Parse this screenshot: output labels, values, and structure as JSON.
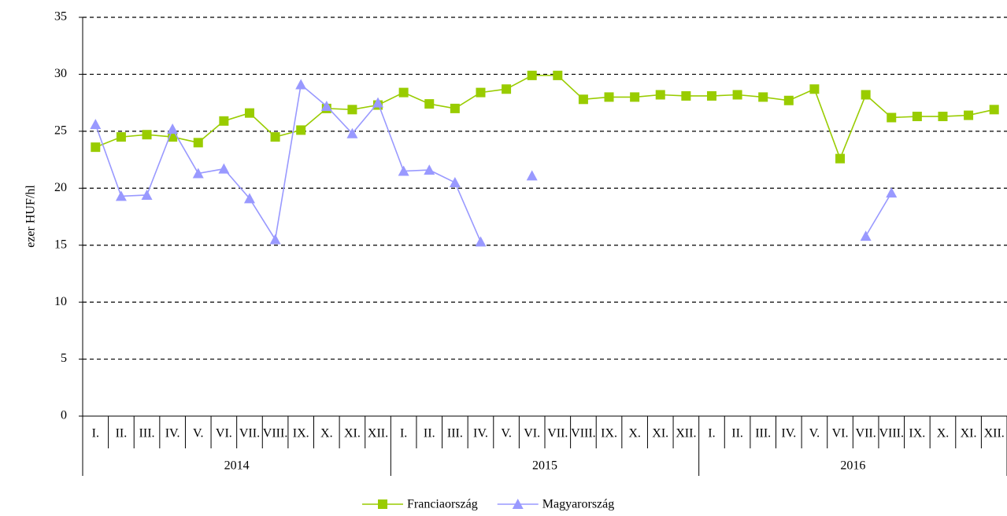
{
  "chart_data": {
    "type": "line",
    "y_label": "ezer HUF/hl",
    "categories": [
      "I.",
      "II.",
      "III.",
      "IV.",
      "V.",
      "VI.",
      "VII.",
      "VIII.",
      "IX.",
      "X.",
      "XI.",
      "XII.",
      "I.",
      "II.",
      "III.",
      "IV.",
      "V.",
      "VI.",
      "VII.",
      "VIII.",
      "IX.",
      "X.",
      "XI.",
      "XII.",
      "I.",
      "II.",
      "III.",
      "IV.",
      "V.",
      "VI.",
      "VII.",
      "VIII.",
      "IX.",
      "X.",
      "XI.",
      "XII."
    ],
    "years": [
      "2014",
      "2015",
      "2016"
    ],
    "series": [
      {
        "name": "Franciaország",
        "color": "#99cc00",
        "marker": "square",
        "values": [
          23.6,
          24.5,
          24.7,
          24.5,
          24.0,
          25.9,
          26.6,
          24.5,
          25.1,
          27.0,
          26.9,
          27.3,
          28.4,
          27.4,
          27.0,
          28.4,
          28.7,
          29.9,
          29.9,
          27.8,
          28.0,
          28.0,
          28.2,
          28.1,
          28.1,
          28.2,
          28.0,
          27.7,
          28.7,
          22.6,
          28.2,
          26.2,
          26.3,
          26.3,
          26.4,
          26.9
        ]
      },
      {
        "name": "Magyarország",
        "color": "#9999ff",
        "marker": "triangle",
        "values": [
          25.6,
          19.3,
          19.4,
          25.2,
          21.3,
          21.7,
          19.1,
          15.5,
          29.1,
          27.2,
          24.8,
          27.5,
          21.5,
          21.6,
          20.5,
          15.3,
          null,
          21.1,
          null,
          null,
          null,
          null,
          null,
          null,
          null,
          null,
          null,
          null,
          null,
          null,
          15.8,
          19.6,
          null,
          null,
          null,
          null
        ]
      }
    ],
    "ylim": [
      0,
      35
    ],
    "yticks": [
      0,
      5,
      10,
      15,
      20,
      25,
      30,
      35
    ],
    "grid": true,
    "legend": "bottom"
  }
}
